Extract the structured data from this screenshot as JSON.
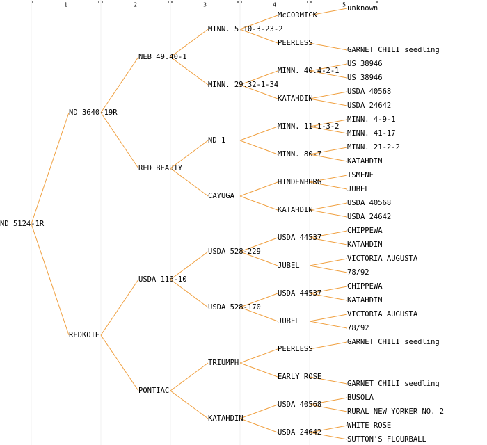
{
  "generations": [
    "1",
    "2",
    "3",
    "4",
    "5"
  ],
  "tree": {
    "label": "ND 5124-1R",
    "parents": [
      {
        "label": "ND 3640-19R",
        "parents": [
          {
            "label": "NEB 49.40-1",
            "parents": [
              {
                "label": "MINN. 5.10-3-23-2",
                "parents": [
                  {
                    "label": "McCORMICK",
                    "parents": [
                      {
                        "label": "unknown"
                      }
                    ]
                  },
                  {
                    "label": "PEERLESS",
                    "parents": [
                      null,
                      {
                        "label": "GARNET CHILI seedling"
                      }
                    ]
                  }
                ]
              },
              {
                "label": "MINN. 29.32-1-34",
                "color": "#0000cc",
                "parents": [
                  {
                    "label": "MINN. 40.4-2-1",
                    "parents": [
                      {
                        "label": "US 38946"
                      },
                      {
                        "label": "US 38946"
                      }
                    ]
                  },
                  {
                    "label": "KATAHDIN",
                    "parents": [
                      {
                        "label": "USDA 40568"
                      },
                      {
                        "label": "USDA 24642"
                      }
                    ]
                  }
                ]
              }
            ]
          },
          {
            "label": "RED BEAUTY",
            "color": "#0000cc",
            "parents": [
              {
                "label": "ND 1",
                "parents": [
                  {
                    "label": "MINN. 11-1-3-2",
                    "parents": [
                      {
                        "label": "MINN. 4-9-1"
                      },
                      {
                        "label": "MINN. 41-17"
                      }
                    ]
                  },
                  {
                    "label": "MINN. 80-7",
                    "parents": [
                      {
                        "label": "MINN. 21-2-2"
                      },
                      {
                        "label": "KATAHDIN"
                      }
                    ]
                  }
                ]
              },
              {
                "label": "CAYUGA",
                "parents": [
                  {
                    "label": "HINDENBURG",
                    "parents": [
                      {
                        "label": "ISMENE"
                      },
                      {
                        "label": "JUBEL"
                      }
                    ]
                  },
                  {
                    "label": "KATAHDIN",
                    "parents": [
                      {
                        "label": "USDA 40568"
                      },
                      {
                        "label": "USDA 24642"
                      }
                    ]
                  }
                ]
              }
            ]
          }
        ]
      },
      {
        "label": "REDKOTE",
        "parents": [
          {
            "label": "USDA 116-10",
            "parents": [
              {
                "label": "USDA 528-229",
                "parents": [
                  {
                    "label": "USDA 44537",
                    "parents": [
                      {
                        "label": "CHIPPEWA"
                      },
                      {
                        "label": "KATAHDIN"
                      }
                    ]
                  },
                  {
                    "label": "JUBEL",
                    "parents": [
                      {
                        "label": "VICTORIA AUGUSTA"
                      },
                      {
                        "label": "78/92"
                      }
                    ]
                  }
                ]
              },
              {
                "label": "USDA 528-170",
                "parents": [
                  {
                    "label": "USDA 44537",
                    "parents": [
                      {
                        "label": "CHIPPEWA"
                      },
                      {
                        "label": "KATAHDIN"
                      }
                    ]
                  },
                  {
                    "label": "JUBEL",
                    "parents": [
                      {
                        "label": "VICTORIA AUGUSTA"
                      },
                      {
                        "label": "78/92"
                      }
                    ]
                  }
                ]
              }
            ]
          },
          {
            "label": "PONTIAC",
            "parents": [
              {
                "label": "TRIUMPH",
                "color": "#0000cc",
                "parents": [
                  {
                    "label": "PEERLESS",
                    "parents": [
                      {
                        "label": "GARNET CHILI seedling"
                      }
                    ]
                  },
                  {
                    "label": "EARLY ROSE",
                    "parents": [
                      null,
                      {
                        "label": "GARNET CHILI seedling"
                      }
                    ]
                  }
                ]
              },
              {
                "label": "KATAHDIN",
                "parents": [
                  {
                    "label": "USDA 40568",
                    "parents": [
                      {
                        "label": "BUSOLA"
                      },
                      {
                        "label": "RURAL NEW YORKER NO. 2"
                      }
                    ]
                  },
                  {
                    "label": "USDA 24642",
                    "parents": [
                      {
                        "label": "WHITE ROSE"
                      },
                      {
                        "label": "SUTTON'S FLOURBALL"
                      }
                    ]
                  }
                ]
              }
            ]
          }
        ]
      }
    ]
  }
}
